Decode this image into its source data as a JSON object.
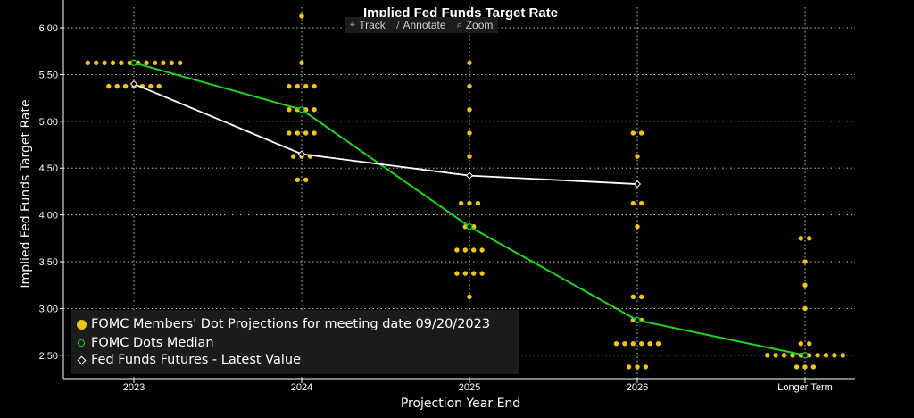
{
  "toolbar": {
    "track_label": "Track",
    "annotate_label": "Annotate",
    "zoom_label": "Zoom",
    "track_icon": "crosshair-icon",
    "annotate_icon": "pencil-icon",
    "zoom_icon": "magnifier-icon"
  },
  "chart_data": {
    "type": "scatter",
    "title": "Implied Fed Funds Target Rate",
    "xlabel": "Projection Year End",
    "ylabel": "Implied Fed Funds Target Rate",
    "categories": [
      "2023",
      "2024",
      "2025",
      "2026",
      "Longer Term"
    ],
    "yticks": [
      "2.50",
      "3.00",
      "3.50",
      "4.00",
      "4.50",
      "5.00",
      "5.50",
      "6.00"
    ],
    "ylim": [
      2.25,
      6.22
    ],
    "grid": true,
    "legend_position": "bottom-left",
    "colors": {
      "dots": "#f2c31b",
      "median": "#21d321",
      "futures": "#ffffff",
      "background": "#000000"
    },
    "series": [
      {
        "name": "FOMC Members' Dot Projections for meeting date 09/20/2023",
        "kind": "dots",
        "points": [
          {
            "x": "2023",
            "y": 5.625,
            "count": 12
          },
          {
            "x": "2023",
            "y": 5.375,
            "count": 7
          },
          {
            "x": "2024",
            "y": 6.125,
            "count": 1
          },
          {
            "x": "2024",
            "y": 5.625,
            "count": 1
          },
          {
            "x": "2024",
            "y": 5.375,
            "count": 4
          },
          {
            "x": "2024",
            "y": 5.125,
            "count": 4
          },
          {
            "x": "2024",
            "y": 4.875,
            "count": 4
          },
          {
            "x": "2024",
            "y": 4.625,
            "count": 3
          },
          {
            "x": "2024",
            "y": 4.375,
            "count": 2
          },
          {
            "x": "2025",
            "y": 5.625,
            "count": 1
          },
          {
            "x": "2025",
            "y": 5.375,
            "count": 1
          },
          {
            "x": "2025",
            "y": 5.125,
            "count": 1
          },
          {
            "x": "2025",
            "y": 4.875,
            "count": 1
          },
          {
            "x": "2025",
            "y": 4.625,
            "count": 1
          },
          {
            "x": "2025",
            "y": 4.125,
            "count": 3
          },
          {
            "x": "2025",
            "y": 3.875,
            "count": 2
          },
          {
            "x": "2025",
            "y": 3.625,
            "count": 4
          },
          {
            "x": "2025",
            "y": 3.375,
            "count": 4
          },
          {
            "x": "2025",
            "y": 3.125,
            "count": 1
          },
          {
            "x": "2025",
            "y": 2.875,
            "count": 1
          },
          {
            "x": "2026",
            "y": 4.875,
            "count": 2
          },
          {
            "x": "2026",
            "y": 4.625,
            "count": 1
          },
          {
            "x": "2026",
            "y": 4.125,
            "count": 2
          },
          {
            "x": "2026",
            "y": 3.875,
            "count": 1
          },
          {
            "x": "2026",
            "y": 3.125,
            "count": 2
          },
          {
            "x": "2026",
            "y": 2.875,
            "count": 2
          },
          {
            "x": "2026",
            "y": 2.625,
            "count": 6
          },
          {
            "x": "2026",
            "y": 2.375,
            "count": 3
          },
          {
            "x": "Longer Term",
            "y": 3.75,
            "count": 2
          },
          {
            "x": "Longer Term",
            "y": 3.5,
            "count": 1
          },
          {
            "x": "Longer Term",
            "y": 3.25,
            "count": 1
          },
          {
            "x": "Longer Term",
            "y": 3.0,
            "count": 1
          },
          {
            "x": "Longer Term",
            "y": 2.625,
            "count": 2
          },
          {
            "x": "Longer Term",
            "y": 2.5,
            "count": 10
          },
          {
            "x": "Longer Term",
            "y": 2.375,
            "count": 3
          }
        ]
      },
      {
        "name": "FOMC Dots Median",
        "kind": "line",
        "x": [
          "2023",
          "2024",
          "2025",
          "2026",
          "Longer Term"
        ],
        "values": [
          5.625,
          5.125,
          3.875,
          2.875,
          2.5
        ]
      },
      {
        "name": "Fed Funds Futures - Latest Value",
        "kind": "line",
        "x": [
          "2023",
          "2024",
          "2025",
          "2026"
        ],
        "values": [
          5.4,
          4.65,
          4.42,
          4.33
        ]
      }
    ]
  }
}
